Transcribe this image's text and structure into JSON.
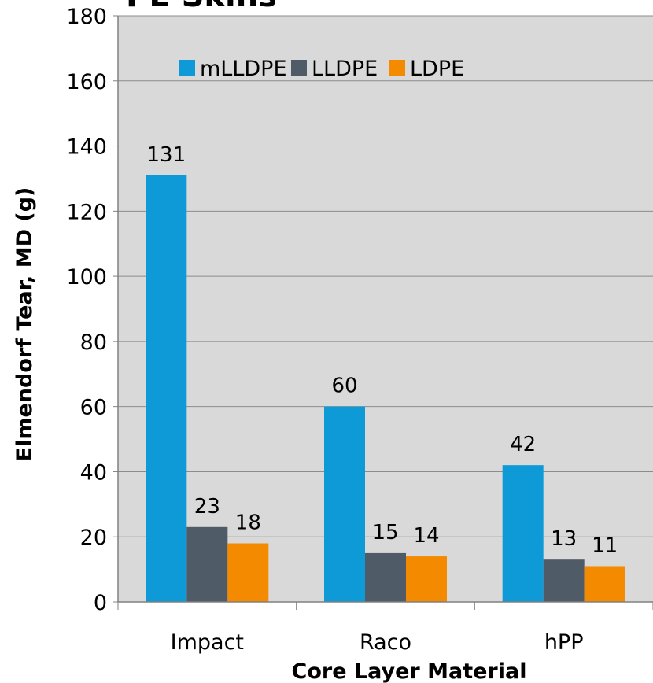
{
  "chart_data": {
    "type": "bar",
    "title": "PE Skins",
    "xlabel": "Core Layer Material",
    "ylabel": "Elmendorf Tear, MD (g)",
    "categories": [
      "Impact",
      "Raco",
      "hPP"
    ],
    "series": [
      {
        "name": "mLLDPE",
        "values": [
          131,
          60,
          42
        ],
        "color": "#0E9AD7"
      },
      {
        "name": "LLDPE",
        "values": [
          23,
          15,
          13
        ],
        "color": "#4F5B66"
      },
      {
        "name": "LDPE",
        "values": [
          18,
          14,
          11
        ],
        "color": "#F38A00"
      }
    ],
    "data_labels": [
      [
        "131",
        "60",
        "42"
      ],
      [
        "23",
        "15",
        "13"
      ],
      [
        "18",
        "14",
        "11"
      ]
    ],
    "ylim": [
      0,
      180
    ],
    "yticks": [
      0,
      20,
      40,
      60,
      80,
      100,
      120,
      140,
      160,
      180
    ],
    "grid": true,
    "legend_position": "top",
    "plot_background": "#D9D9D9"
  }
}
